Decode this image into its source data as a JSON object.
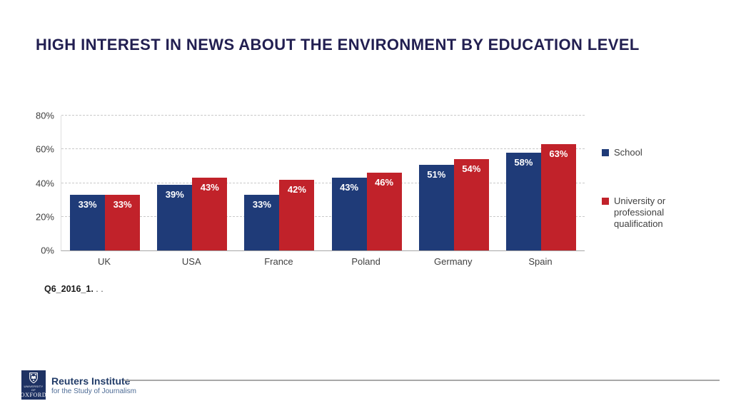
{
  "header": {
    "title": "HIGH INTEREST IN NEWS ABOUT THE ENVIRONMENT BY EDUCATION LEVEL",
    "title_color": "#221f51"
  },
  "chart_data": {
    "type": "bar",
    "title": "HIGH INTEREST IN NEWS ABOUT THE ENVIRONMENT BY EDUCATION LEVEL",
    "categories": [
      "UK",
      "USA",
      "France",
      "Poland",
      "Germany",
      "Spain"
    ],
    "series": [
      {
        "id": "school",
        "name": "School",
        "legend_label": "School",
        "color": "#1f3b78",
        "values": [
          33,
          39,
          33,
          43,
          51,
          58
        ]
      },
      {
        "id": "university",
        "name": "University or professional qualification",
        "legend_label": "University or\nprofessional\nqualification",
        "color": "#c1222a",
        "values": [
          33,
          43,
          42,
          46,
          54,
          63
        ]
      }
    ],
    "value_suffix": "%",
    "xlabel": "",
    "ylabel": "",
    "ylim": [
      0,
      80
    ],
    "yticks": [
      "0%",
      "20%",
      "40%",
      "60%",
      "80%"
    ],
    "grid": "horizontal-dashed",
    "legend_position": "right",
    "data_labels": "inside-top-white"
  },
  "footnote": {
    "bold": "Q6_2016_1.",
    "rest": " . ."
  },
  "footer": {
    "university_line": "UNIVERSITY OF",
    "oxford": "OXFORD",
    "brand": "Reuters Institute",
    "brand_sub": "for the Study of Journalism"
  },
  "colors": {
    "axis_text": "#404040",
    "gridline": "#c9c9c9",
    "axis_line": "#a6a6a6",
    "footer_rule": "#a8a8a8",
    "logo_navy": "#1e3263"
  }
}
